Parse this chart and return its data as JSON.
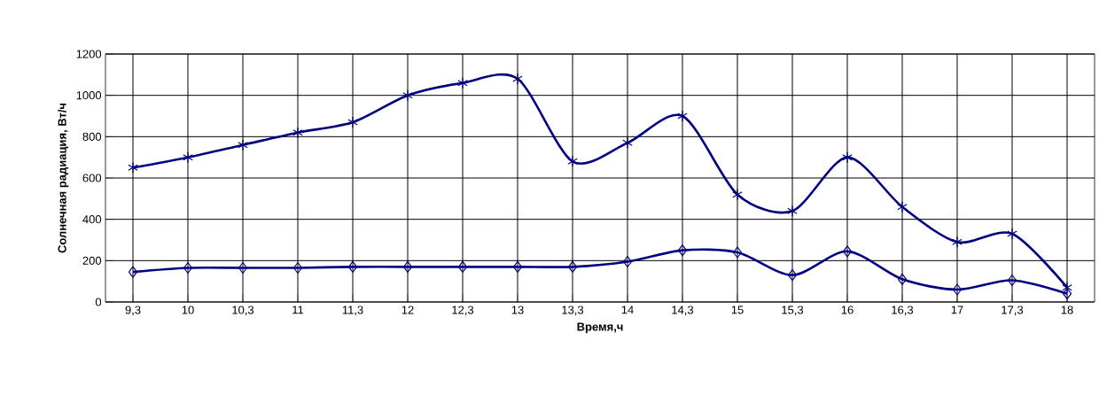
{
  "chart_data": {
    "type": "line",
    "xlabel": "Время,ч",
    "ylabel": "Солнечная радиация, Вт/ч",
    "categories": [
      "9,3",
      "10",
      "10,3",
      "11",
      "11,3",
      "12",
      "12,3",
      "13",
      "13,3",
      "14",
      "14,3",
      "15",
      "15,3",
      "16",
      "16,3",
      "17",
      "17,3",
      "18"
    ],
    "series": [
      {
        "color": "#000080",
        "marker": "cross",
        "values": [
          650,
          700,
          760,
          820,
          870,
          1000,
          1060,
          1080,
          680,
          770,
          900,
          520,
          440,
          700,
          460,
          290,
          330,
          70
        ]
      },
      {
        "color": "#000080",
        "marker": "diamond",
        "values": [
          145,
          165,
          165,
          165,
          170,
          170,
          170,
          170,
          170,
          195,
          250,
          240,
          130,
          245,
          110,
          60,
          105,
          40
        ]
      }
    ],
    "ylim": [
      0,
      1200
    ],
    "yticks": [
      0,
      200,
      400,
      600,
      800,
      1000,
      1200
    ],
    "grid": true,
    "line_style": "solid"
  }
}
